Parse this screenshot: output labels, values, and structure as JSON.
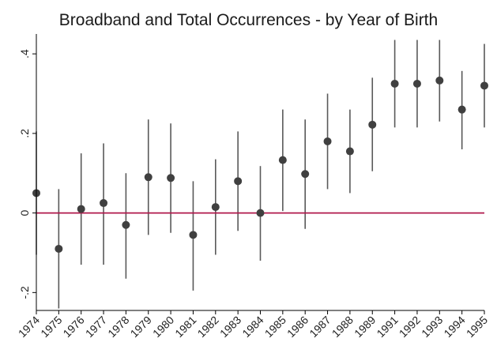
{
  "chart_data": {
    "type": "scatter",
    "title": "Broadband and Total Occurrences - by Year of Birth",
    "xlabel": "",
    "ylabel": "",
    "categories": [
      "1974",
      "1975",
      "1976",
      "1977",
      "1978",
      "1979",
      "1980",
      "1981",
      "1982",
      "1983",
      "1984",
      "1985",
      "1986",
      "1987",
      "1988",
      "1989",
      "1991",
      "1992",
      "1993",
      "1994",
      "1995"
    ],
    "series": [
      {
        "estimate": [
          0.05,
          -0.09,
          0.01,
          0.025,
          -0.03,
          0.09,
          0.088,
          -0.055,
          0.015,
          0.08,
          0.0,
          0.133,
          0.098,
          0.18,
          0.155,
          0.222,
          0.325,
          0.325,
          0.333,
          0.26,
          0.32
        ],
        "ci_low": [
          -0.105,
          -0.24,
          -0.13,
          -0.13,
          -0.165,
          -0.055,
          -0.05,
          -0.195,
          -0.105,
          -0.045,
          -0.12,
          0.005,
          -0.04,
          0.06,
          0.05,
          0.105,
          0.215,
          0.215,
          0.23,
          0.16,
          0.215
        ],
        "ci_high": [
          0.205,
          0.06,
          0.15,
          0.175,
          0.1,
          0.235,
          0.225,
          0.08,
          0.135,
          0.205,
          0.118,
          0.26,
          0.235,
          0.3,
          0.26,
          0.34,
          0.435,
          0.435,
          0.435,
          0.357,
          0.425
        ]
      }
    ],
    "y_ticks": [
      {
        "value": -0.2,
        "label": "-.2"
      },
      {
        "value": 0,
        "label": "0"
      },
      {
        "value": 0.2,
        "label": ".2"
      },
      {
        "value": 0.4,
        "label": ".4"
      }
    ],
    "ylim": [
      -0.245,
      0.45
    ],
    "reference_line": 0,
    "colors": {
      "marker": "#404040",
      "ci": "#595959",
      "reference": "#b0184c",
      "axis": "#000000"
    },
    "grid": false
  }
}
